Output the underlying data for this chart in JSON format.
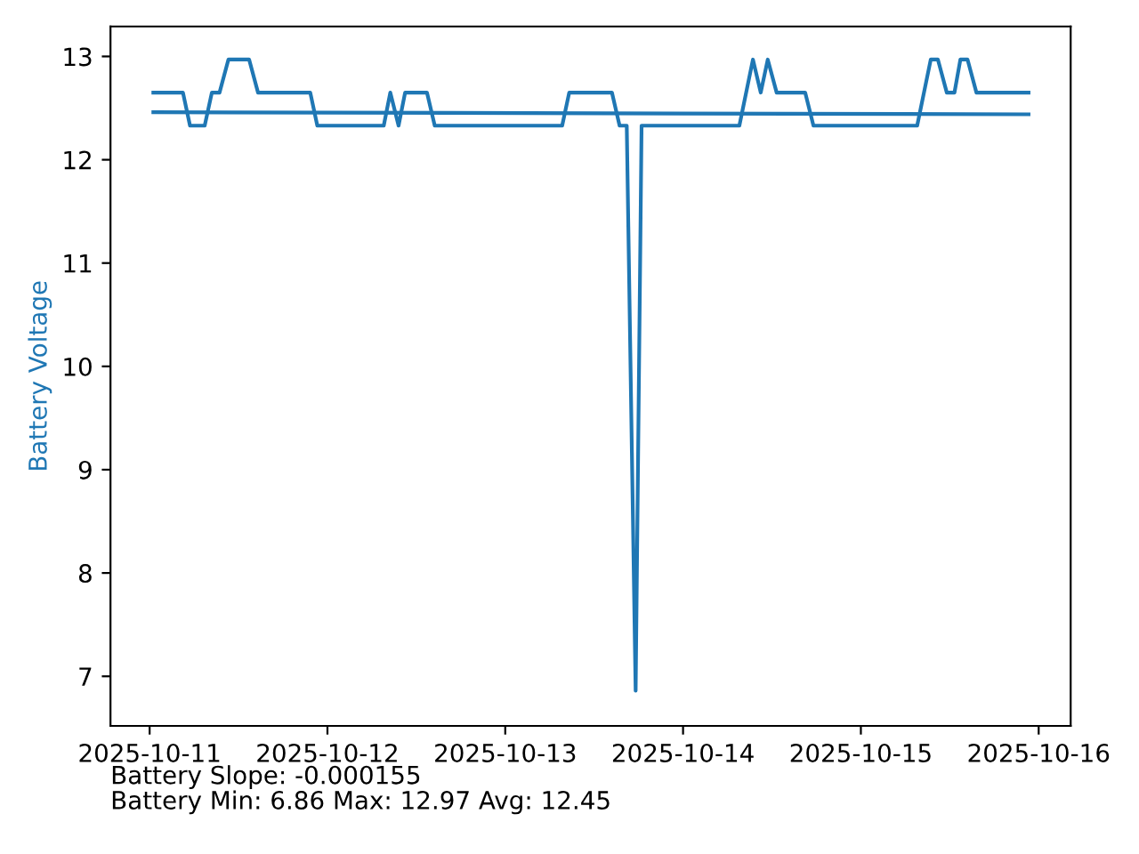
{
  "chart_data": {
    "type": "line",
    "ylabel": "Battery Voltage",
    "annotations": [
      "Battery Slope: -0.000155",
      "Battery Min: 6.86 Max: 12.97 Avg: 12.45"
    ],
    "xlim": [
      "2025-10-10T18:43",
      "2025-10-16T04:19"
    ],
    "ylim": [
      6.52,
      13.29
    ],
    "xticks": [
      "2025-10-11",
      "2025-10-12",
      "2025-10-13",
      "2025-10-14",
      "2025-10-15",
      "2025-10-16"
    ],
    "yticks": [
      7,
      8,
      9,
      10,
      11,
      12,
      13
    ],
    "grid": false,
    "legend": false,
    "series": [
      {
        "color": "#1f77b4",
        "x": [
          "2025-10-11T00:30",
          "2025-10-11T04:30",
          "2025-10-11T05:27",
          "2025-10-11T07:26",
          "2025-10-11T08:24",
          "2025-10-11T09:26",
          "2025-10-11T10:38",
          "2025-10-11T13:26",
          "2025-10-11T14:38",
          "2025-10-11T21:41",
          "2025-10-11T22:38",
          "2025-10-12T07:36",
          "2025-10-12T08:29",
          "2025-10-12T09:36",
          "2025-10-12T10:29",
          "2025-10-12T13:26",
          "2025-10-12T14:29",
          "2025-10-13T07:41",
          "2025-10-13T08:38",
          "2025-10-13T14:24",
          "2025-10-13T15:26",
          "2025-10-13T16:24",
          "2025-10-13T17:36",
          "2025-10-13T18:24",
          "2025-10-14T07:36",
          "2025-10-14T09:26",
          "2025-10-14T10:29",
          "2025-10-14T11:26",
          "2025-10-14T12:38",
          "2025-10-14T16:29",
          "2025-10-14T17:36",
          "2025-10-15T07:36",
          "2025-10-15T09:26",
          "2025-10-15T10:24",
          "2025-10-15T11:36",
          "2025-10-15T12:38",
          "2025-10-15T13:26",
          "2025-10-15T14:24",
          "2025-10-15T15:36",
          "2025-10-15T22:38"
        ],
        "values": [
          12.65,
          12.65,
          12.33,
          12.33,
          12.65,
          12.65,
          12.97,
          12.97,
          12.65,
          12.65,
          12.33,
          12.33,
          12.65,
          12.33,
          12.65,
          12.65,
          12.33,
          12.33,
          12.65,
          12.65,
          12.33,
          12.33,
          6.86,
          12.33,
          12.33,
          12.97,
          12.65,
          12.97,
          12.65,
          12.65,
          12.33,
          12.33,
          12.97,
          12.97,
          12.65,
          12.65,
          12.97,
          12.97,
          12.65,
          12.65
        ]
      },
      {
        "color": "#1f77b4",
        "x": [
          "2025-10-11T00:30",
          "2025-10-15T22:38"
        ],
        "values": [
          12.46,
          12.44
        ]
      }
    ]
  }
}
